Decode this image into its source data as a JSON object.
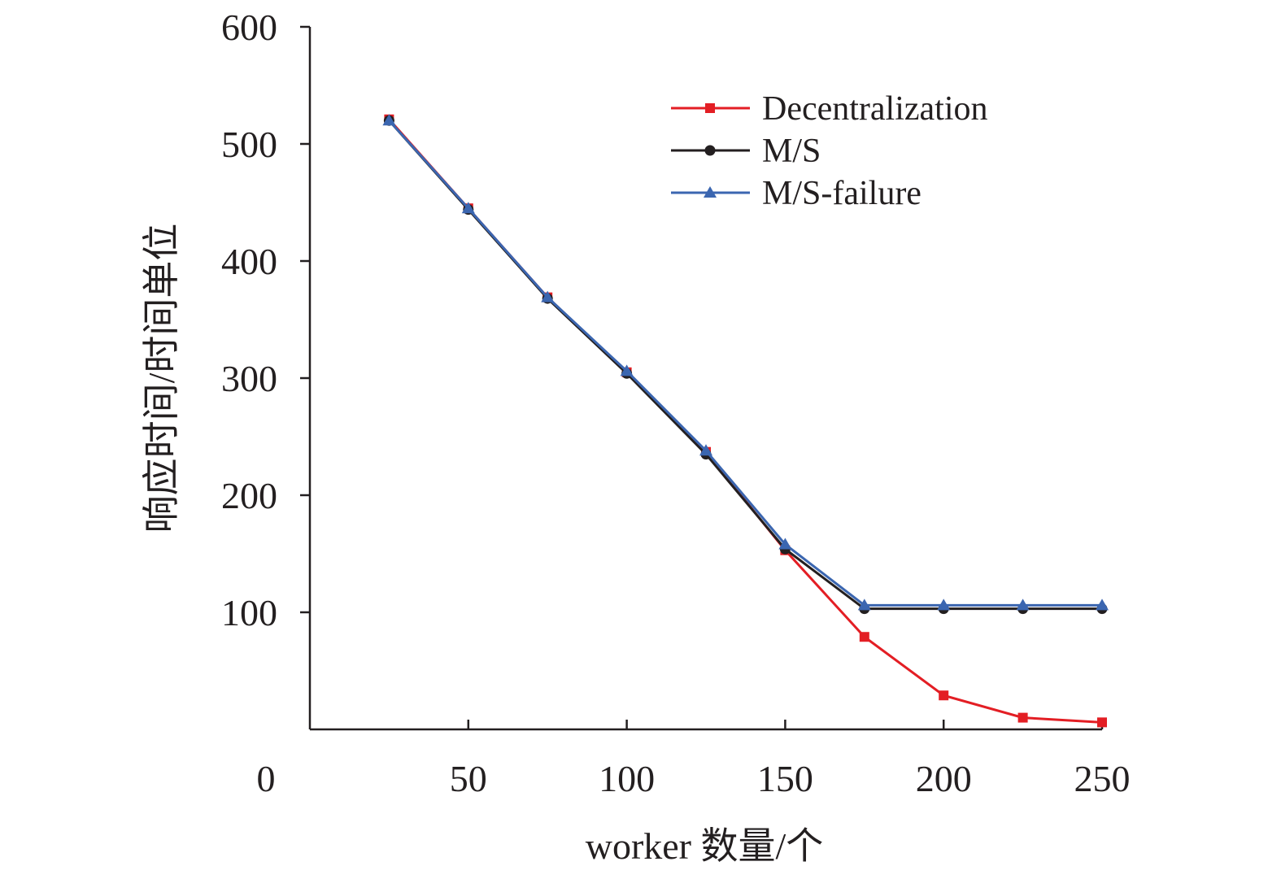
{
  "chart_data": {
    "type": "line",
    "title": "",
    "xlabel": "worker 数量/个",
    "ylabel": "响应时间/时间单位",
    "x": [
      25,
      50,
      75,
      100,
      125,
      150,
      175,
      200,
      225,
      250
    ],
    "xlim": [
      0,
      250
    ],
    "ylim": [
      0,
      600
    ],
    "x_ticks": [
      50,
      100,
      150,
      200,
      250
    ],
    "y_ticks": [
      100,
      200,
      300,
      400,
      500,
      600
    ],
    "origin_label": "0",
    "grid": false,
    "legend_position": "top-right",
    "series": [
      {
        "name": "Decentralization",
        "color": "#e31e24",
        "marker": "square",
        "values": [
          521,
          445,
          369,
          305,
          237,
          153,
          79,
          29,
          10,
          6
        ]
      },
      {
        "name": "M/S",
        "color": "#231f20",
        "marker": "circle",
        "values": [
          520,
          444,
          368,
          304,
          235,
          154,
          103,
          103,
          103,
          103
        ]
      },
      {
        "name": "M/S-failure",
        "color": "#3b66b0",
        "marker": "triangle",
        "values": [
          520,
          445,
          369,
          306,
          238,
          158,
          106,
          106,
          106,
          106
        ]
      }
    ]
  }
}
